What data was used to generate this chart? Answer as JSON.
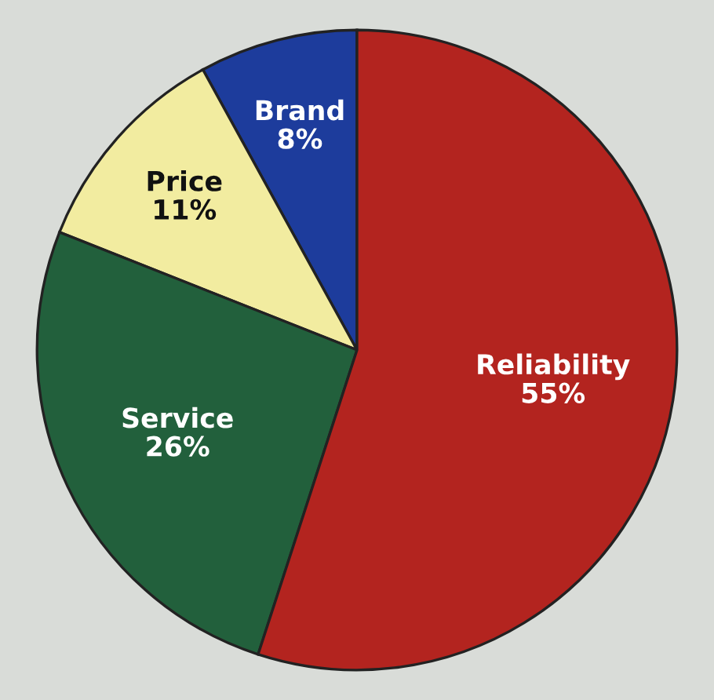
{
  "chart_data": {
    "type": "pie",
    "categories": [
      "Brand",
      "Price",
      "Service",
      "Reliability"
    ],
    "values": [
      8,
      11,
      26,
      55
    ],
    "colors": [
      "#1d3c9c",
      "#f2eca0",
      "#22603c",
      "#b3241f"
    ],
    "value_labels": [
      "8%",
      "11%",
      "26%",
      "55%"
    ]
  }
}
